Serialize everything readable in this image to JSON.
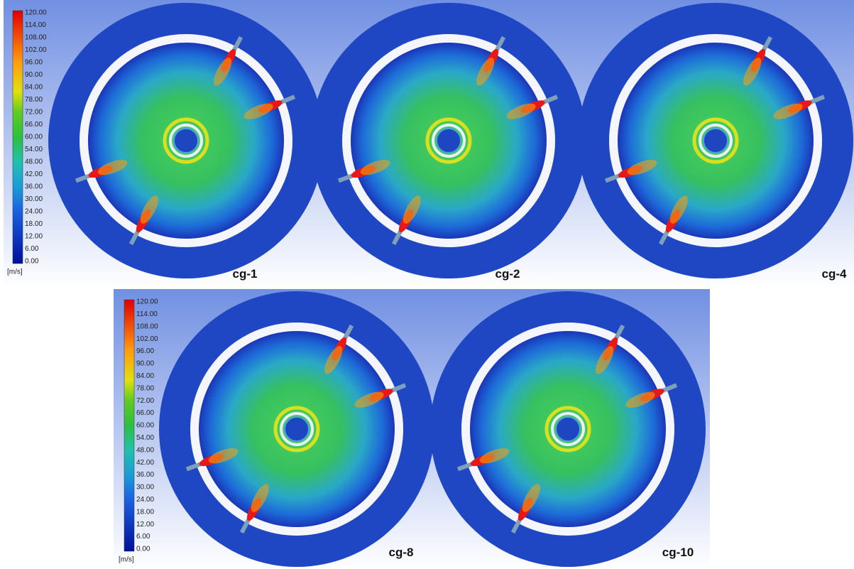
{
  "panels": [
    {
      "legend": {
        "ticks": [
          "120.00",
          "114.00",
          "108.00",
          "102.00",
          "96.00",
          "90.00",
          "84.00",
          "78.00",
          "72.00",
          "66.00",
          "60.00",
          "54.00",
          "48.00",
          "42.00",
          "36.00",
          "30.00",
          "24.00",
          "18.00",
          "12.00",
          "6.00",
          "0.00"
        ],
        "unit": "[m/s]"
      },
      "plots": [
        {
          "label": "cg-1"
        },
        {
          "label": "cg-2"
        },
        {
          "label": "cg-4"
        }
      ]
    },
    {
      "legend": {
        "ticks": [
          "120.00",
          "114.00",
          "108.00",
          "102.00",
          "96.00",
          "90.00",
          "84.00",
          "78.00",
          "72.00",
          "66.00",
          "60.00",
          "54.00",
          "48.00",
          "42.00",
          "36.00",
          "30.00",
          "24.00",
          "18.00",
          "12.00",
          "6.00",
          "0.00"
        ],
        "unit": "[m/s]"
      },
      "plots": [
        {
          "label": "cg-8"
        },
        {
          "label": "cg-10"
        }
      ]
    }
  ]
}
